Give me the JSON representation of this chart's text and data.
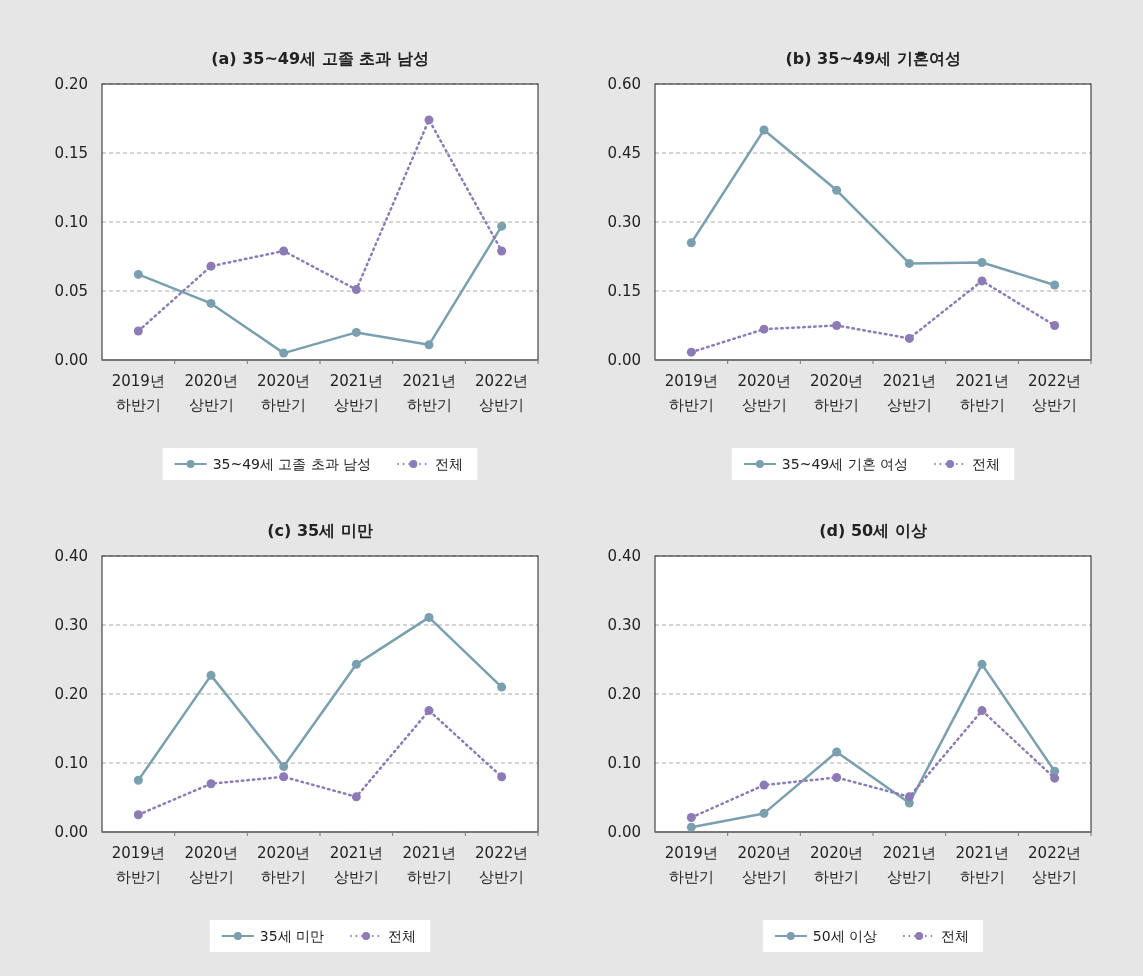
{
  "chart_data": [
    {
      "type": "line",
      "title": "(a) 35~49세 고졸 초과 남성",
      "categories": [
        "2019년\n하반기",
        "2020년\n상반기",
        "2020년\n하반기",
        "2021년\n상반기",
        "2021년\n하반기",
        "2022년\n상반기"
      ],
      "ylim": [
        0,
        0.2
      ],
      "yticks": [
        {
          "value": 0,
          "label": "0.00"
        },
        {
          "value": 0.05,
          "label": "0.05"
        },
        {
          "value": 0.1,
          "label": "0.10"
        },
        {
          "value": 0.15,
          "label": "0.15"
        },
        {
          "value": 0.2,
          "label": "0.20"
        }
      ],
      "grid": "y",
      "legend": "bottom",
      "marker": "circle",
      "series": [
        {
          "name": "35~49세 고졸 초과 남성",
          "color": "#7a9fae",
          "line_style": "solid",
          "values": [
            0.062,
            0.041,
            0.005,
            0.02,
            0.011,
            0.097
          ]
        },
        {
          "name": "전체",
          "color": "#8c7bb5",
          "line_style": "dotted",
          "values": [
            0.021,
            0.068,
            0.079,
            0.051,
            0.174,
            0.079
          ]
        }
      ]
    },
    {
      "type": "line",
      "title": "(b) 35~49세 기혼여성",
      "categories": [
        "2019년\n하반기",
        "2020년\n상반기",
        "2020년\n하반기",
        "2021년\n상반기",
        "2021년\n하반기",
        "2022년\n상반기"
      ],
      "ylim": [
        0,
        0.6
      ],
      "yticks": [
        {
          "value": 0,
          "label": "0.00"
        },
        {
          "value": 0.15,
          "label": "0.15"
        },
        {
          "value": 0.3,
          "label": "0.30"
        },
        {
          "value": 0.45,
          "label": "0.45"
        },
        {
          "value": 0.6,
          "label": "0.60"
        }
      ],
      "grid": "y",
      "legend": "bottom",
      "marker": "circle",
      "series": [
        {
          "name": "35~49세 기혼 여성",
          "color": "#7a9fae",
          "line_style": "solid",
          "values": [
            0.255,
            0.5,
            0.369,
            0.21,
            0.212,
            0.163
          ]
        },
        {
          "name": "전체",
          "color": "#8c7bb5",
          "line_style": "dotted",
          "values": [
            0.017,
            0.067,
            0.075,
            0.047,
            0.172,
            0.075
          ]
        }
      ]
    },
    {
      "type": "line",
      "title": "(c) 35세 미만",
      "categories": [
        "2019년\n하반기",
        "2020년\n상반기",
        "2020년\n하반기",
        "2021년\n상반기",
        "2021년\n하반기",
        "2022년\n상반기"
      ],
      "ylim": [
        0,
        0.4
      ],
      "yticks": [
        {
          "value": 0,
          "label": "0.00"
        },
        {
          "value": 0.1,
          "label": "0.10"
        },
        {
          "value": 0.2,
          "label": "0.20"
        },
        {
          "value": 0.3,
          "label": "0.30"
        },
        {
          "value": 0.4,
          "label": "0.40"
        }
      ],
      "grid": "y",
      "legend": "bottom",
      "marker": "circle",
      "series": [
        {
          "name": "35세 미만",
          "color": "#7a9fae",
          "line_style": "solid",
          "values": [
            0.075,
            0.227,
            0.095,
            0.243,
            0.311,
            0.21
          ]
        },
        {
          "name": "전체",
          "color": "#8c7bb5",
          "line_style": "dotted",
          "values": [
            0.025,
            0.07,
            0.08,
            0.051,
            0.176,
            0.08
          ]
        }
      ]
    },
    {
      "type": "line",
      "title": "(d) 50세 이상",
      "categories": [
        "2019년\n하반기",
        "2020년\n상반기",
        "2020년\n하반기",
        "2021년\n상반기",
        "2021년\n하반기",
        "2022년\n상반기"
      ],
      "ylim": [
        0,
        0.4
      ],
      "yticks": [
        {
          "value": 0,
          "label": "0.00"
        },
        {
          "value": 0.1,
          "label": "0.10"
        },
        {
          "value": 0.2,
          "label": "0.20"
        },
        {
          "value": 0.3,
          "label": "0.30"
        },
        {
          "value": 0.4,
          "label": "0.40"
        }
      ],
      "grid": "y",
      "legend": "bottom",
      "marker": "circle",
      "series": [
        {
          "name": "50세 이상",
          "color": "#7a9fae",
          "line_style": "solid",
          "values": [
            0.007,
            0.027,
            0.116,
            0.042,
            0.243,
            0.088
          ]
        },
        {
          "name": "전체",
          "color": "#8c7bb5",
          "line_style": "dotted",
          "values": [
            0.021,
            0.068,
            0.079,
            0.051,
            0.176,
            0.078
          ]
        }
      ]
    }
  ]
}
